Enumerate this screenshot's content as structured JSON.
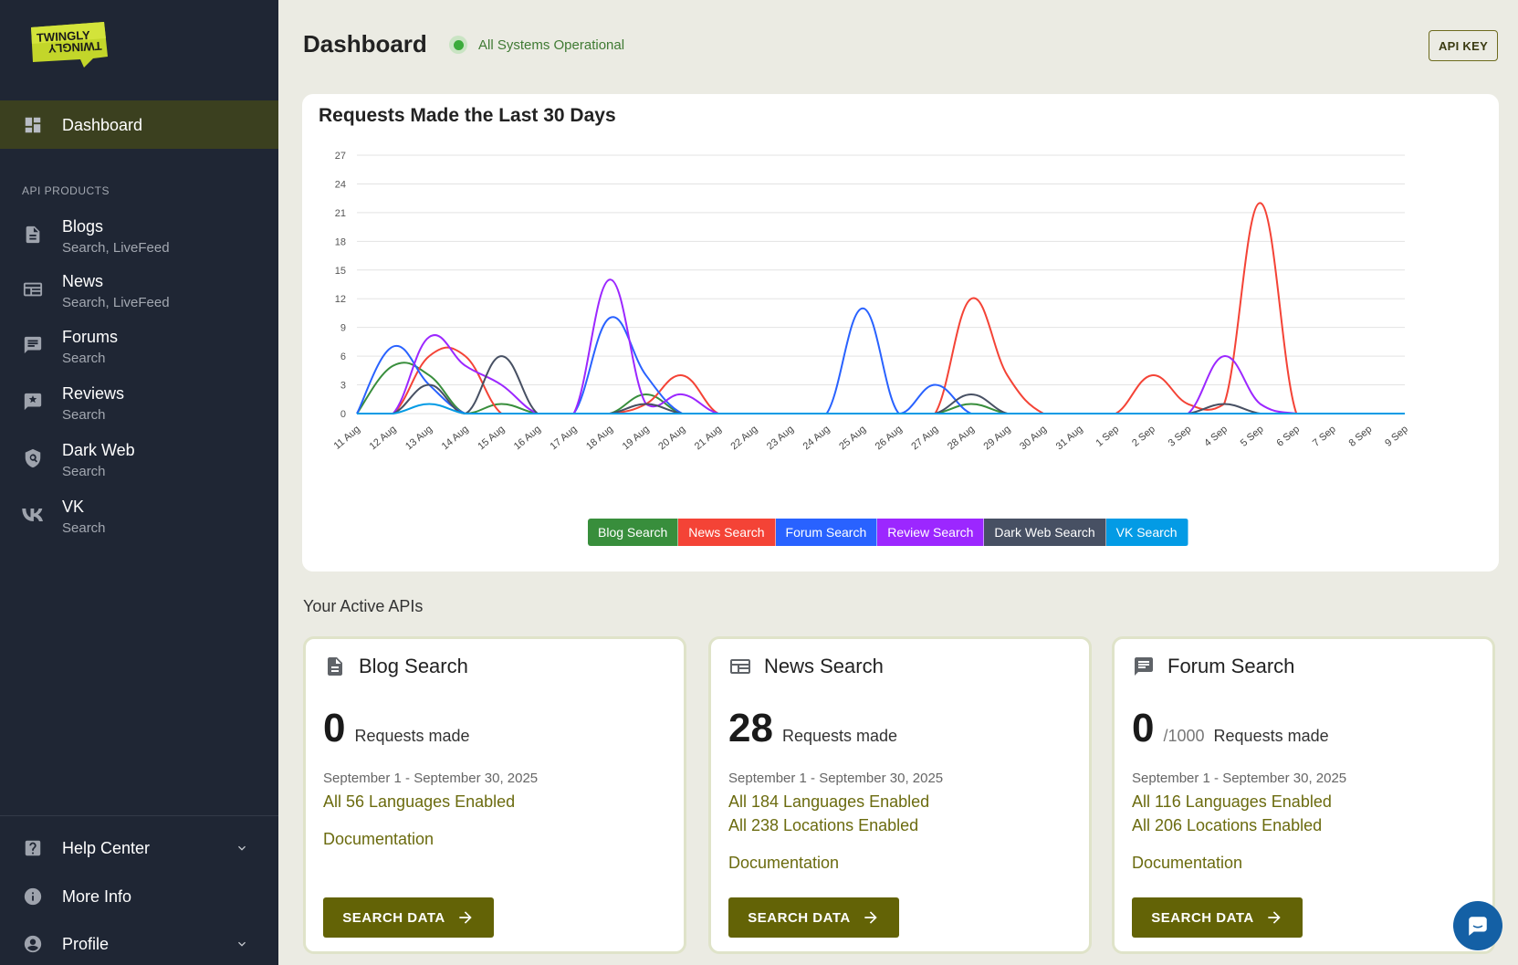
{
  "sidebar": {
    "logo_top": "TWINGLY",
    "logo_bottom": "TWINGLY",
    "active_item": {
      "label": "Dashboard",
      "icon": "dashboard-icon"
    },
    "section_label": "API PRODUCTS",
    "items": [
      {
        "label": "Blogs",
        "sub": "Search, LiveFeed",
        "icon": "document-icon"
      },
      {
        "label": "News",
        "sub": "Search, LiveFeed",
        "icon": "newspaper-icon"
      },
      {
        "label": "Forums",
        "sub": "Search",
        "icon": "chat-icon"
      },
      {
        "label": "Reviews",
        "sub": "Search",
        "icon": "review-icon"
      },
      {
        "label": "Dark Web",
        "sub": "Search",
        "icon": "shield-icon"
      },
      {
        "label": "VK",
        "sub": "Search",
        "icon": "vk-icon"
      }
    ],
    "bottom": [
      {
        "label": "Help Center",
        "icon": "help-icon"
      },
      {
        "label": "More Info",
        "icon": "info-icon"
      },
      {
        "label": "Profile",
        "icon": "profile-icon"
      }
    ]
  },
  "header": {
    "title": "Dashboard",
    "status": "All Systems Operational",
    "api_key_label": "API KEY"
  },
  "chart_card": {
    "title": "Requests Made the Last 30 Days"
  },
  "chart_data": {
    "type": "line",
    "title": "Requests Made the Last 30 Days",
    "categories": [
      "11 Aug",
      "12 Aug",
      "13 Aug",
      "14 Aug",
      "15 Aug",
      "16 Aug",
      "17 Aug",
      "18 Aug",
      "19 Aug",
      "20 Aug",
      "21 Aug",
      "22 Aug",
      "23 Aug",
      "24 Aug",
      "25 Aug",
      "26 Aug",
      "27 Aug",
      "28 Aug",
      "29 Aug",
      "30 Aug",
      "31 Aug",
      "1 Sep",
      "2 Sep",
      "3 Sep",
      "4 Sep",
      "5 Sep",
      "6 Sep",
      "7 Sep",
      "8 Sep",
      "9 Sep"
    ],
    "ylim": [
      0,
      27
    ],
    "yticks": [
      0,
      3,
      6,
      9,
      12,
      15,
      18,
      21,
      24,
      27
    ],
    "grid": true,
    "legend_position": "bottom",
    "series": [
      {
        "name": "Blog Search",
        "color": "#388e3c",
        "values": [
          0,
          5,
          4,
          0,
          1,
          0,
          0,
          0,
          2,
          0,
          0,
          0,
          0,
          0,
          0,
          0,
          0,
          1,
          0,
          0,
          0,
          0,
          0,
          0,
          0,
          0,
          0,
          0,
          0,
          0
        ]
      },
      {
        "name": "News Search",
        "color": "#f44336",
        "values": [
          0,
          0,
          6,
          6,
          0,
          0,
          0,
          0,
          1,
          4,
          0,
          0,
          0,
          0,
          0,
          0,
          0,
          12,
          4,
          0,
          0,
          0,
          4,
          1,
          1,
          22,
          0,
          0,
          0,
          0
        ]
      },
      {
        "name": "Forum Search",
        "color": "#2962ff",
        "values": [
          0,
          7,
          3,
          0,
          0,
          0,
          0,
          10,
          4,
          0,
          0,
          0,
          0,
          0,
          11,
          0,
          3,
          0,
          0,
          0,
          0,
          0,
          0,
          0,
          0,
          0,
          0,
          0,
          0,
          0
        ]
      },
      {
        "name": "Review Search",
        "color": "#9c27ff",
        "values": [
          0,
          0,
          8,
          5,
          3,
          0,
          0,
          14,
          1,
          2,
          0,
          0,
          0,
          0,
          0,
          0,
          0,
          0,
          0,
          0,
          0,
          0,
          0,
          0,
          6,
          1,
          0,
          0,
          0,
          0
        ]
      },
      {
        "name": "Dark Web Search",
        "color": "#475063",
        "values": [
          0,
          0,
          3,
          0,
          6,
          0,
          0,
          0,
          1,
          0,
          0,
          0,
          0,
          0,
          0,
          0,
          0,
          2,
          0,
          0,
          0,
          0,
          0,
          0,
          1,
          0,
          0,
          0,
          0,
          0
        ]
      },
      {
        "name": "VK Search",
        "color": "#039be5",
        "values": [
          0,
          0,
          1,
          0,
          0,
          0,
          0,
          0,
          0,
          0,
          0,
          0,
          0,
          0,
          0,
          0,
          0,
          0,
          0,
          0,
          0,
          0,
          0,
          0,
          0,
          0,
          0,
          0,
          0,
          0
        ]
      }
    ]
  },
  "active_apis": {
    "title": "Your Active APIs",
    "cards": [
      {
        "title": "Blog Search",
        "icon": "document-icon",
        "count": "0",
        "limit": "",
        "req_label": "Requests made",
        "period": "September 1 - September 30, 2025",
        "line1": "All 56 Languages Enabled",
        "line2": "",
        "doc": "Documentation",
        "button": "SEARCH DATA"
      },
      {
        "title": "News Search",
        "icon": "newspaper-icon",
        "count": "28",
        "limit": "",
        "req_label": "Requests made",
        "period": "September 1 - September 30, 2025",
        "line1": "All 184 Languages Enabled",
        "line2": "All 238 Locations Enabled",
        "doc": "Documentation",
        "button": "SEARCH DATA"
      },
      {
        "title": "Forum Search",
        "icon": "chat-icon",
        "count": "0",
        "limit": "/1000",
        "req_label": "Requests made",
        "period": "September 1 - September 30, 2025",
        "line1": "All 116 Languages Enabled",
        "line2": "All 206 Locations Enabled",
        "doc": "Documentation",
        "button": "SEARCH DATA"
      }
    ]
  },
  "colors": {
    "sidebar_bg": "#1f2634",
    "active_bg": "#3b401f",
    "accent": "#636306",
    "page_bg": "#ebebe3",
    "status_green": "#3bab3b"
  }
}
